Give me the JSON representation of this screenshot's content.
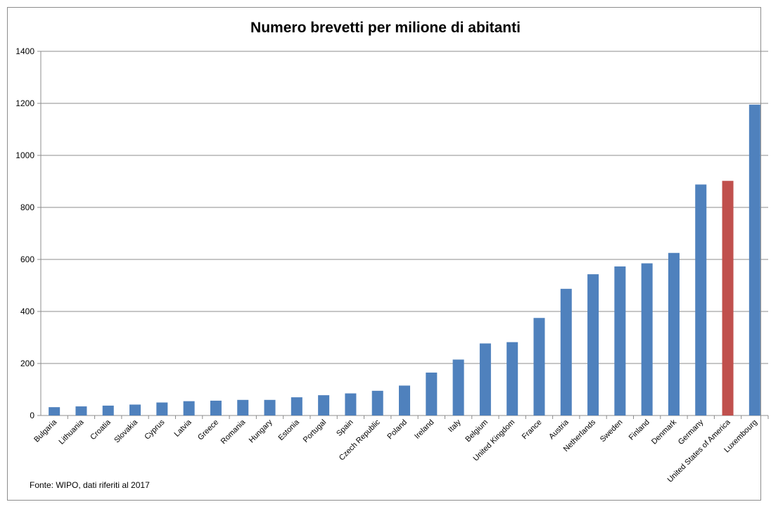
{
  "chart_data": {
    "type": "bar",
    "title": "Numero brevetti per milione di abitanti",
    "categories": [
      "Bulgaria",
      "Lithuania",
      "Croatia",
      "Slovakia",
      "Cyprus",
      "Latvia",
      "Greece",
      "Romania",
      "Hungary",
      "Estonia",
      "Portugal",
      "Spain",
      "Czech Republic",
      "Poland",
      "Ireland",
      "Italy",
      "Belgium",
      "United Kingdom",
      "France",
      "Austria",
      "Netherlands",
      "Sweden",
      "Finland",
      "Denmark",
      "Germany",
      "United States of America",
      "Luxembourg"
    ],
    "values": [
      32,
      35,
      38,
      42,
      50,
      55,
      57,
      60,
      60,
      70,
      78,
      85,
      95,
      115,
      165,
      215,
      277,
      282,
      375,
      487,
      543,
      573,
      585,
      625,
      888,
      902,
      1195
    ],
    "ylim": [
      0,
      1400
    ],
    "yticks": [
      0,
      200,
      400,
      600,
      800,
      1000,
      1200,
      1400
    ],
    "grid": true,
    "legend": "none",
    "bar_color": "#4f81bd",
    "highlight_color": "#c0504d",
    "highlight_category": "United States of America",
    "source": "Fonte: WIPO, dati riferiti al 2017"
  }
}
